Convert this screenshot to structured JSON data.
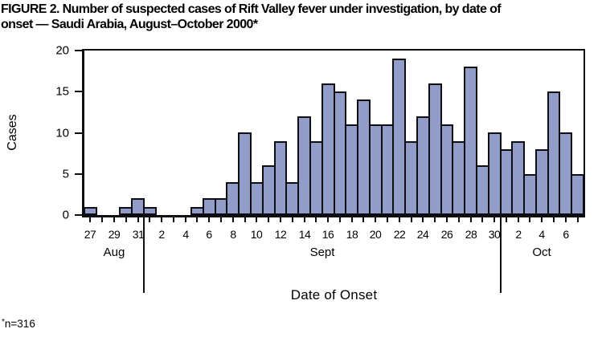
{
  "header": {
    "title_line1": "FIGURE 2. Number of suspected cases of Rift Valley fever under investigation, by date of",
    "title_line2": "onset — Saudi Arabia, August–October 2000*"
  },
  "chart_data": {
    "type": "bar",
    "title": "FIGURE 2. Number of suspected cases of Rift Valley fever under investigation, by date of onset — Saudi Arabia, August–October 2000*",
    "xlabel": "Date of Onset",
    "ylabel": "Cases",
    "ylim": [
      0,
      20
    ],
    "yticks": [
      0,
      5,
      10,
      15,
      20
    ],
    "x_tick_label_interval": 2,
    "grid": "off",
    "legend": "none",
    "bar_fill": "#919CC8",
    "bar_border": "#0D0D12",
    "months": [
      {
        "label": "Aug",
        "start": 0,
        "count": 5
      },
      {
        "label": "Sept",
        "start": 5,
        "count": 30
      },
      {
        "label": "Oct",
        "start": 35,
        "count": 7
      }
    ],
    "categories": [
      "Aug 27",
      "Aug 28",
      "Aug 29",
      "Aug 30",
      "Aug 31",
      "Sep 1",
      "Sep 2",
      "Sep 3",
      "Sep 4",
      "Sep 5",
      "Sep 6",
      "Sep 7",
      "Sep 8",
      "Sep 9",
      "Sep 10",
      "Sep 11",
      "Sep 12",
      "Sep 13",
      "Sep 14",
      "Sep 15",
      "Sep 16",
      "Sep 17",
      "Sep 18",
      "Sep 19",
      "Sep 20",
      "Sep 21",
      "Sep 22",
      "Sep 23",
      "Sep 24",
      "Sep 25",
      "Sep 26",
      "Sep 27",
      "Sep 28",
      "Sep 29",
      "Sep 30",
      "Oct 1",
      "Oct 2",
      "Oct 3",
      "Oct 4",
      "Oct 5",
      "Oct 6",
      "Oct 7"
    ],
    "values": [
      1,
      0,
      0,
      1,
      2,
      1,
      0,
      0,
      0,
      1,
      2,
      2,
      4,
      10,
      4,
      6,
      9,
      4,
      12,
      9,
      16,
      15,
      11,
      14,
      11,
      11,
      19,
      9,
      12,
      16,
      11,
      9,
      18,
      6,
      10,
      8,
      9,
      5,
      8,
      15,
      10,
      5
    ]
  },
  "footnote": {
    "marker": "*",
    "text": "n=316"
  }
}
